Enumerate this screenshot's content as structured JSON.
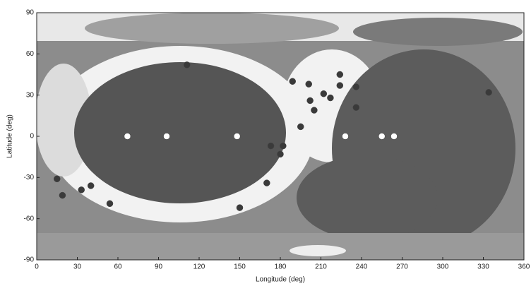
{
  "chart_data": {
    "type": "scatter",
    "xlabel": "Longitude (deg)",
    "ylabel": "Latitude (deg)",
    "xlim": [
      0,
      360
    ],
    "ylim": [
      -90,
      90
    ],
    "xticks": [
      0,
      30,
      60,
      90,
      120,
      150,
      180,
      210,
      240,
      270,
      300,
      330,
      360
    ],
    "yticks": [
      -90,
      -60,
      -30,
      0,
      30,
      60,
      90
    ],
    "series": [
      {
        "color": "#ffffff",
        "x": [
          67,
          96,
          148,
          228,
          255,
          264
        ],
        "y": [
          0,
          0,
          0,
          0,
          0,
          0
        ]
      },
      {
        "color": "#3a3a3a",
        "x": [
          111,
          189,
          201,
          212,
          224,
          224,
          236,
          217,
          202,
          205,
          236,
          195,
          182,
          180,
          173,
          170,
          15,
          19,
          33,
          40,
          54,
          150,
          334
        ],
        "y": [
          52,
          40,
          38,
          31,
          45,
          37,
          36,
          28,
          26,
          19,
          21,
          7,
          -7,
          -13,
          -7,
          -34,
          -31,
          -43,
          -39,
          -36,
          -49,
          -52,
          32
        ]
      }
    ]
  }
}
